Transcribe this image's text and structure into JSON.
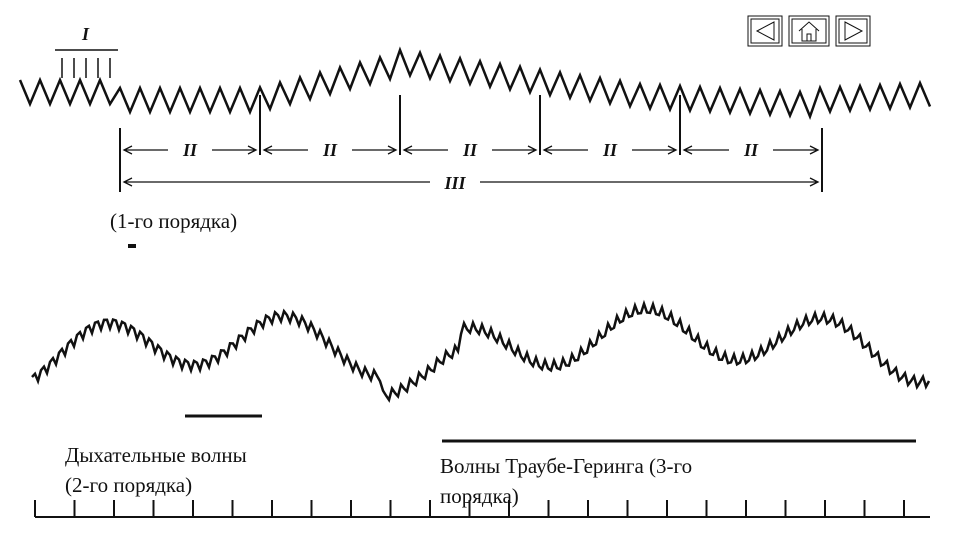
{
  "top_labels": {
    "first": "I",
    "second": [
      "II",
      "II",
      "II",
      "II",
      "II"
    ],
    "third": "III"
  },
  "captions": {
    "first_order": "(1-го порядка)",
    "respiratory": [
      "Дыхательные волны",
      "(2-го порядка)"
    ],
    "traube": [
      "Волны Траубе-Геринга (3-го",
      "порядка)"
    ]
  }
}
